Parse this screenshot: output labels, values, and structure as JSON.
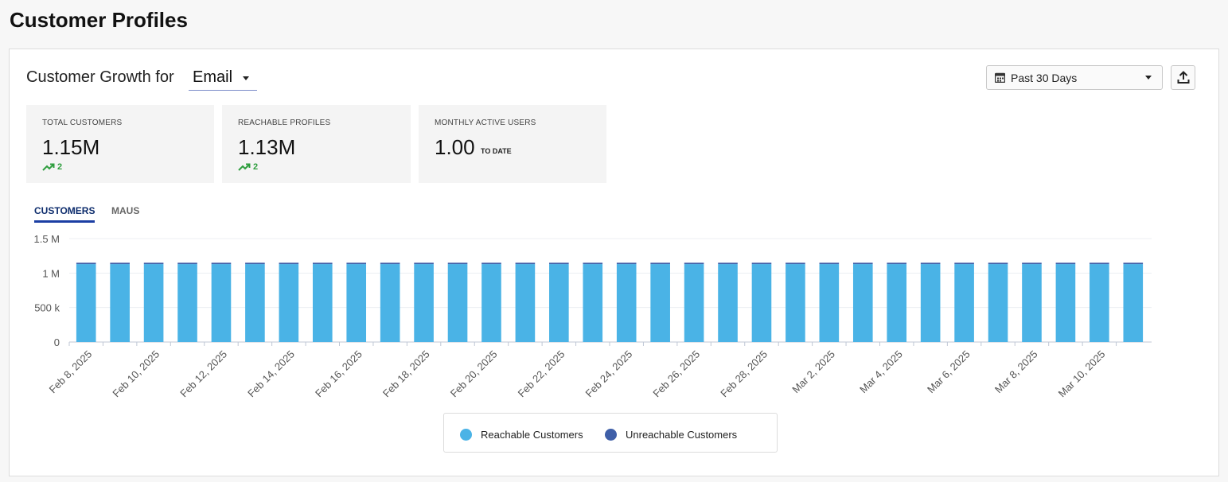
{
  "page": {
    "title": "Customer Profiles"
  },
  "header": {
    "growth_label": "Customer Growth for",
    "channel": "Email",
    "date_range": "Past 30 Days"
  },
  "cards": [
    {
      "label": "TOTAL CUSTOMERS",
      "value": "1.15M",
      "trend": "2"
    },
    {
      "label": "REACHABLE PROFILES",
      "value": "1.13M",
      "trend": "2"
    },
    {
      "label": "MONTHLY ACTIVE USERS",
      "value": "1.00",
      "suffix": "TO DATE"
    }
  ],
  "tabs": [
    {
      "label": "CUSTOMERS",
      "active": true
    },
    {
      "label": "MAUS",
      "active": false
    }
  ],
  "colors": {
    "reachable": "#4ab3e6",
    "unreachable": "#3f5fa8",
    "trend_up": "#2e9e3e",
    "tab_accent": "#1b3ea3"
  },
  "chart_data": {
    "type": "bar",
    "stacked": true,
    "categories": [
      "Feb 8, 2025",
      "Feb 9, 2025",
      "Feb 10, 2025",
      "Feb 11, 2025",
      "Feb 12, 2025",
      "Feb 13, 2025",
      "Feb 14, 2025",
      "Feb 15, 2025",
      "Feb 16, 2025",
      "Feb 17, 2025",
      "Feb 18, 2025",
      "Feb 19, 2025",
      "Feb 20, 2025",
      "Feb 21, 2025",
      "Feb 22, 2025",
      "Feb 23, 2025",
      "Feb 24, 2025",
      "Feb 25, 2025",
      "Feb 26, 2025",
      "Feb 27, 2025",
      "Feb 28, 2025",
      "Mar 1, 2025",
      "Mar 2, 2025",
      "Mar 3, 2025",
      "Mar 4, 2025",
      "Mar 5, 2025",
      "Mar 6, 2025",
      "Mar 7, 2025",
      "Mar 8, 2025",
      "Mar 9, 2025",
      "Mar 10, 2025",
      "Mar 11, 2025"
    ],
    "tick_labels": [
      "Feb 8, 2025",
      "",
      "Feb 10, 2025",
      "",
      "Feb 12, 2025",
      "",
      "Feb 14, 2025",
      "",
      "Feb 16, 2025",
      "",
      "Feb 18, 2025",
      "",
      "Feb 20, 2025",
      "",
      "Feb 22, 2025",
      "",
      "Feb 24, 2025",
      "",
      "Feb 26, 2025",
      "",
      "Feb 28, 2025",
      "",
      "Mar 2, 2025",
      "",
      "Mar 4, 2025",
      "",
      "Mar 6, 2025",
      "",
      "Mar 8, 2025",
      "",
      "Mar 10, 2025",
      ""
    ],
    "series": [
      {
        "name": "Reachable Customers",
        "values": [
          1130000,
          1130000,
          1130000,
          1130000,
          1130000,
          1130000,
          1130000,
          1130000,
          1130000,
          1130000,
          1130000,
          1130000,
          1130000,
          1130000,
          1130000,
          1130000,
          1130000,
          1130000,
          1130000,
          1130000,
          1130000,
          1130000,
          1130000,
          1130000,
          1130000,
          1130000,
          1130000,
          1130000,
          1130000,
          1130000,
          1130000,
          1130000
        ]
      },
      {
        "name": "Unreachable Customers",
        "values": [
          20000,
          20000,
          20000,
          20000,
          20000,
          20000,
          20000,
          20000,
          20000,
          20000,
          20000,
          20000,
          20000,
          20000,
          20000,
          20000,
          20000,
          20000,
          20000,
          20000,
          20000,
          20000,
          20000,
          20000,
          20000,
          20000,
          20000,
          20000,
          20000,
          20000,
          20000,
          20000
        ]
      }
    ],
    "yticks": [
      {
        "value": 0,
        "label": "0"
      },
      {
        "value": 500000,
        "label": "500 k"
      },
      {
        "value": 1000000,
        "label": "1 M"
      },
      {
        "value": 1500000,
        "label": "1.5 M"
      }
    ],
    "ylim": [
      0,
      1500000
    ],
    "grid": true,
    "legend_position": "bottom"
  }
}
